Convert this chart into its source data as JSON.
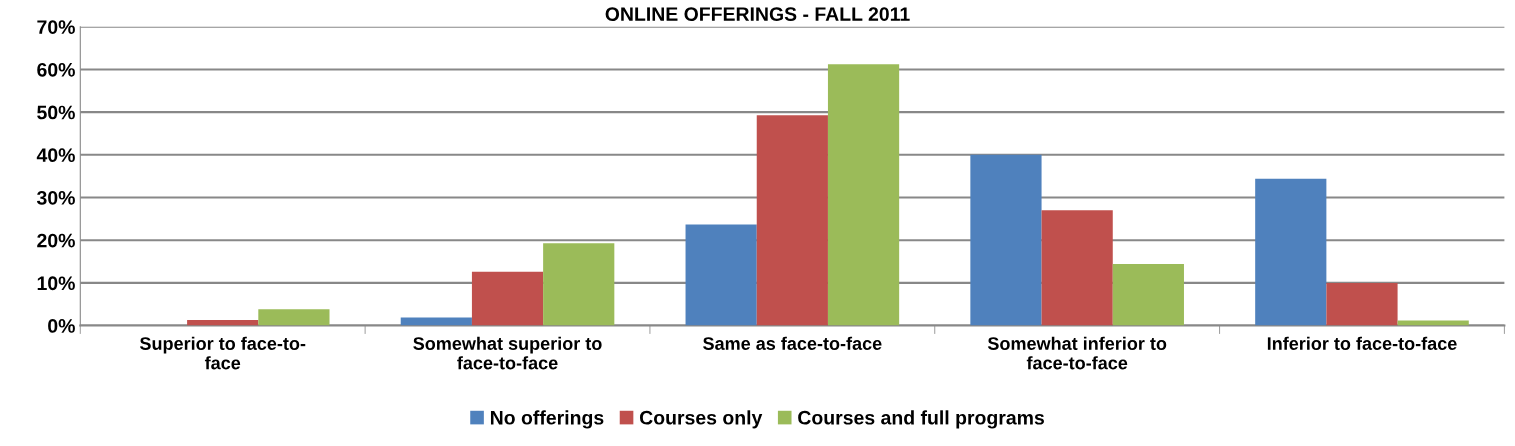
{
  "chart_data": {
    "type": "bar",
    "title": "ONLINE OFFERINGS - FALL 2011",
    "categories": [
      "Superior to face-to-\nface",
      "Somewhat superior to\nface-to-face",
      "Same as face-to-face",
      "Somewhat inferior to\nface-to-face",
      "Inferior to face-to-face"
    ],
    "series": [
      {
        "name": "No offerings",
        "color": "#4f81bd",
        "values": [
          0,
          1.9,
          23.7,
          40.0,
          34.4
        ]
      },
      {
        "name": "Courses only",
        "color": "#c0504d",
        "values": [
          1.3,
          12.6,
          49.3,
          27.0,
          10.0
        ]
      },
      {
        "name": "Courses and full programs",
        "color": "#9bbb59",
        "values": [
          3.8,
          19.3,
          61.2,
          14.4,
          1.2
        ]
      }
    ],
    "ylim": [
      0,
      70
    ],
    "yticks": [
      {
        "value": 0,
        "label": "0%"
      },
      {
        "value": 10,
        "label": "10%"
      },
      {
        "value": 20,
        "label": "20%"
      },
      {
        "value": 30,
        "label": "30%"
      },
      {
        "value": 40,
        "label": "40%"
      },
      {
        "value": 50,
        "label": "50%"
      },
      {
        "value": 60,
        "label": "60%"
      },
      {
        "value": 70,
        "label": "70%"
      }
    ],
    "grid": "y",
    "legend": "bottom"
  }
}
